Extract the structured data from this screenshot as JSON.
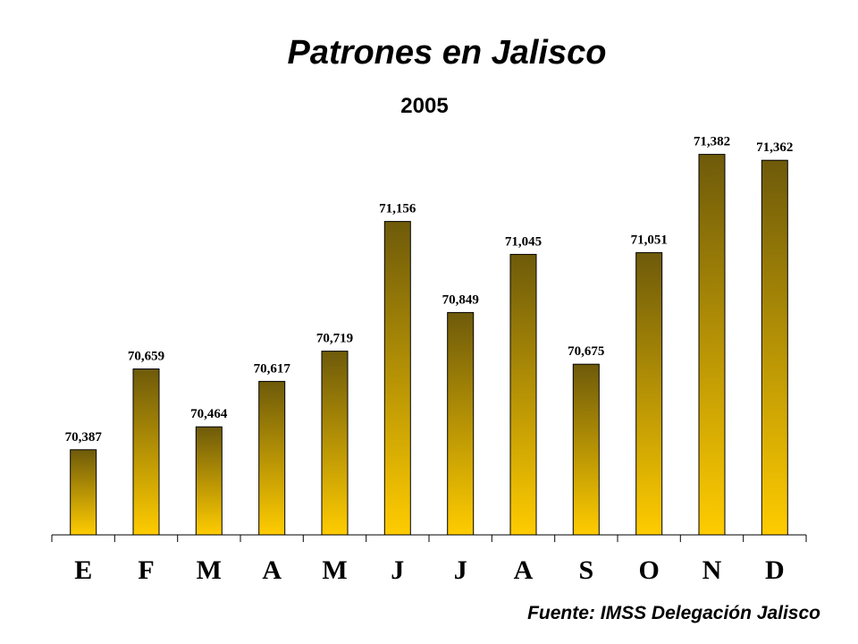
{
  "chart_data": {
    "type": "bar",
    "title": "Patrones en Jalisco",
    "subtitle": "2005",
    "source": "Fuente: IMSS Delegación Jalisco",
    "categories": [
      "E",
      "F",
      "M",
      "A",
      "M",
      "J",
      "J",
      "A",
      "S",
      "O",
      "N",
      "D"
    ],
    "values": [
      70387,
      70659,
      70464,
      70617,
      70719,
      71156,
      70849,
      71045,
      70675,
      71051,
      71382,
      71362
    ],
    "value_labels": [
      "70,387",
      "70,659",
      "70,464",
      "70,617",
      "70,719",
      "71,156",
      "70,849",
      "71,045",
      "70,675",
      "71,051",
      "71,382",
      "71,362"
    ],
    "xlabel": "",
    "ylabel": "",
    "ylim": [
      70100,
      71450
    ],
    "grid": false,
    "legend": "none",
    "colors": {
      "bar_top": "#6e5a0a",
      "bar_bottom": "#ffcc00",
      "bar_outline": "#000000"
    }
  }
}
